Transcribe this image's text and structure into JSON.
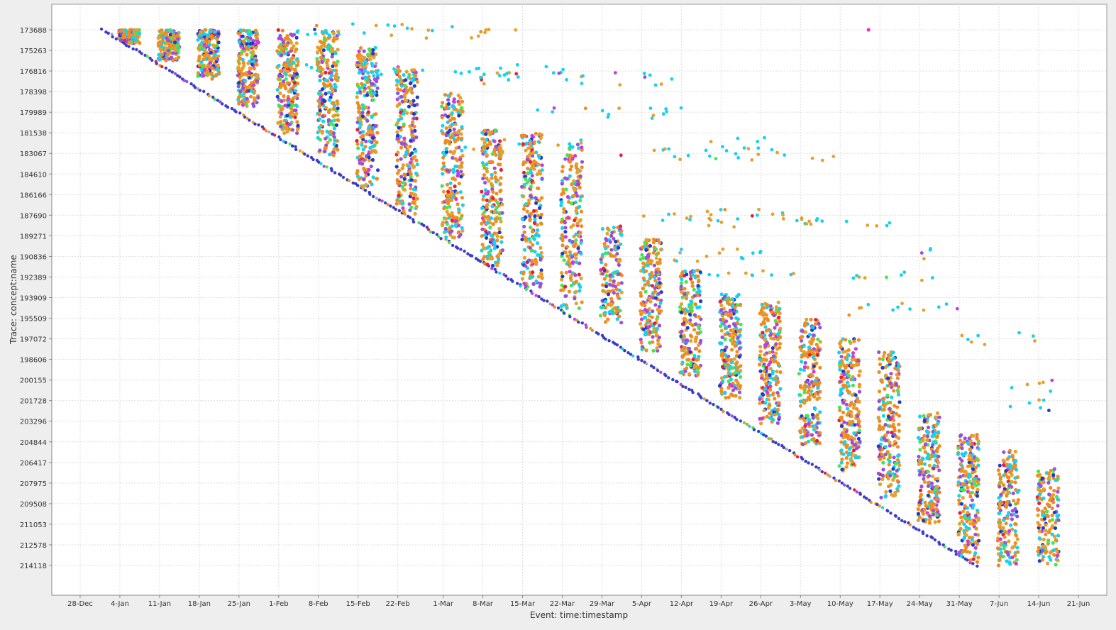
{
  "chart_data": {
    "type": "scatter",
    "title": "",
    "xlabel": "Event: time:timestamp",
    "ylabel": "Trace: concept:name",
    "grid": true,
    "legend": "none",
    "x_range": [
      "2015-12-23",
      "2016-06-26"
    ],
    "y_range": [
      173688,
      214118
    ],
    "x_ticks": [
      {
        "date": "2015-12-28",
        "label": "28-Dec"
      },
      {
        "date": "2016-01-04",
        "label": "4-Jan"
      },
      {
        "date": "2016-01-11",
        "label": "11-Jan"
      },
      {
        "date": "2016-01-18",
        "label": "18-Jan"
      },
      {
        "date": "2016-01-25",
        "label": "25-Jan"
      },
      {
        "date": "2016-02-01",
        "label": "1-Feb"
      },
      {
        "date": "2016-02-08",
        "label": "8-Feb"
      },
      {
        "date": "2016-02-15",
        "label": "15-Feb"
      },
      {
        "date": "2016-02-22",
        "label": "22-Feb"
      },
      {
        "date": "2016-03-01",
        "label": "1-Mar"
      },
      {
        "date": "2016-03-08",
        "label": "8-Mar"
      },
      {
        "date": "2016-03-15",
        "label": "15-Mar"
      },
      {
        "date": "2016-03-22",
        "label": "22-Mar"
      },
      {
        "date": "2016-03-29",
        "label": "29-Mar"
      },
      {
        "date": "2016-04-05",
        "label": "5-Apr"
      },
      {
        "date": "2016-04-12",
        "label": "12-Apr"
      },
      {
        "date": "2016-04-19",
        "label": "19-Apr"
      },
      {
        "date": "2016-04-26",
        "label": "26-Apr"
      },
      {
        "date": "2016-05-03",
        "label": "3-May"
      },
      {
        "date": "2016-05-10",
        "label": "10-May"
      },
      {
        "date": "2016-05-17",
        "label": "17-May"
      },
      {
        "date": "2016-05-24",
        "label": "24-May"
      },
      {
        "date": "2016-05-31",
        "label": "31-May"
      },
      {
        "date": "2016-06-07",
        "label": "7-Jun"
      },
      {
        "date": "2016-06-14",
        "label": "14-Jun"
      },
      {
        "date": "2016-06-21",
        "label": "21-Jun"
      }
    ],
    "y_ticks": [
      "173688",
      "175263",
      "176816",
      "178398",
      "179989",
      "181538",
      "183067",
      "184610",
      "186166",
      "187690",
      "189271",
      "190836",
      "192389",
      "193909",
      "195509",
      "197072",
      "198606",
      "200155",
      "201728",
      "203296",
      "204844",
      "206417",
      "207975",
      "209508",
      "211053",
      "212578",
      "214118"
    ],
    "colors": [
      "#f08c1e",
      "#e6a02e",
      "#14d2f0",
      "#9650dc",
      "#1e3cc8",
      "#46e650",
      "#e61e3c",
      "#c83cdc",
      "#aaaaaa"
    ],
    "diagonal": {
      "start": [
        "2016-01-01",
        173688
      ],
      "end": [
        "2016-06-03",
        214118
      ]
    },
    "weekly_bands": [
      {
        "date": "2016-01-04",
        "top": 173688,
        "bottom": 174700,
        "density": 140
      },
      {
        "date": "2016-01-11",
        "top": 173688,
        "bottom": 176000,
        "density": 170
      },
      {
        "date": "2016-01-18",
        "top": 173688,
        "bottom": 177400,
        "density": 190
      },
      {
        "date": "2016-01-25",
        "top": 173688,
        "bottom": 179500,
        "density": 210
      },
      {
        "date": "2016-02-01",
        "top": 173688,
        "bottom": 181500,
        "density": 220
      },
      {
        "date": "2016-02-08",
        "top": 173688,
        "bottom": 183200,
        "density": 230
      },
      {
        "date": "2016-02-15",
        "top": 175000,
        "bottom": 185500,
        "density": 240
      },
      {
        "date": "2016-02-22",
        "top": 176500,
        "bottom": 187700,
        "density": 240
      },
      {
        "date": "2016-03-01",
        "top": 178500,
        "bottom": 189400,
        "density": 230
      },
      {
        "date": "2016-03-08",
        "top": 181200,
        "bottom": 191500,
        "density": 220
      },
      {
        "date": "2016-03-15",
        "top": 181500,
        "bottom": 193100,
        "density": 220
      },
      {
        "date": "2016-03-22",
        "top": 182300,
        "bottom": 194700,
        "density": 210
      },
      {
        "date": "2016-03-29",
        "top": 188500,
        "bottom": 195800,
        "density": 150
      },
      {
        "date": "2016-04-05",
        "top": 189500,
        "bottom": 198000,
        "density": 190
      },
      {
        "date": "2016-04-12",
        "top": 191800,
        "bottom": 199800,
        "density": 200
      },
      {
        "date": "2016-04-19",
        "top": 193500,
        "bottom": 201500,
        "density": 210
      },
      {
        "date": "2016-04-26",
        "top": 194200,
        "bottom": 203400,
        "density": 220
      },
      {
        "date": "2016-05-03",
        "top": 195500,
        "bottom": 205000,
        "density": 220
      },
      {
        "date": "2016-05-10",
        "top": 197000,
        "bottom": 207000,
        "density": 220
      },
      {
        "date": "2016-05-17",
        "top": 198000,
        "bottom": 209000,
        "density": 220
      },
      {
        "date": "2016-05-24",
        "top": 202600,
        "bottom": 211000,
        "density": 210
      },
      {
        "date": "2016-05-31",
        "top": 204200,
        "bottom": 214118,
        "density": 220
      },
      {
        "date": "2016-06-07",
        "top": 205400,
        "bottom": 214118,
        "density": 180
      },
      {
        "date": "2016-06-14",
        "top": 206800,
        "bottom": 214118,
        "density": 160
      }
    ],
    "scattered_rows": [
      {
        "x": [
          "2016-01-30",
          "2016-03-01"
        ],
        "y": 173688
      },
      {
        "x": [
          "2016-02-25",
          "2016-03-14"
        ],
        "y": 173900
      },
      {
        "x": [
          "2016-02-02",
          "2016-03-25"
        ],
        "y": 176700
      },
      {
        "x": [
          "2016-03-04",
          "2016-04-13"
        ],
        "y": 177400
      },
      {
        "x": [
          "2016-03-17",
          "2016-04-12"
        ],
        "y": 180000
      },
      {
        "x": [
          "2016-03-03",
          "2016-03-26"
        ],
        "y": 182300
      },
      {
        "x": [
          "2016-03-30",
          "2016-05-09"
        ],
        "y": 183100
      },
      {
        "x": [
          "2016-04-17",
          "2016-04-29"
        ],
        "y": 182200
      },
      {
        "x": [
          "2016-04-05",
          "2016-05-09"
        ],
        "y": 187700
      },
      {
        "x": [
          "2016-04-12",
          "2016-05-19"
        ],
        "y": 188100
      },
      {
        "x": [
          "2016-04-05",
          "2016-05-03"
        ],
        "y": 190700
      },
      {
        "x": [
          "2016-04-12",
          "2016-05-03"
        ],
        "y": 191900
      },
      {
        "x": [
          "2016-05-10",
          "2016-05-28"
        ],
        "y": 192200
      },
      {
        "x": [
          "2016-05-24",
          "2016-05-26"
        ],
        "y": 190500
      },
      {
        "x": [
          "2016-05-10",
          "2016-05-31"
        ],
        "y": 194800
      },
      {
        "x": [
          "2016-05-31",
          "2016-06-14"
        ],
        "y": 197000
      },
      {
        "x": [
          "2016-06-07",
          "2016-06-18"
        ],
        "y": 200500
      },
      {
        "x": [
          "2016-06-07",
          "2016-06-18"
        ],
        "y": 202000
      }
    ],
    "outliers": [
      {
        "x": "2016-05-15",
        "y": 173688
      }
    ]
  }
}
